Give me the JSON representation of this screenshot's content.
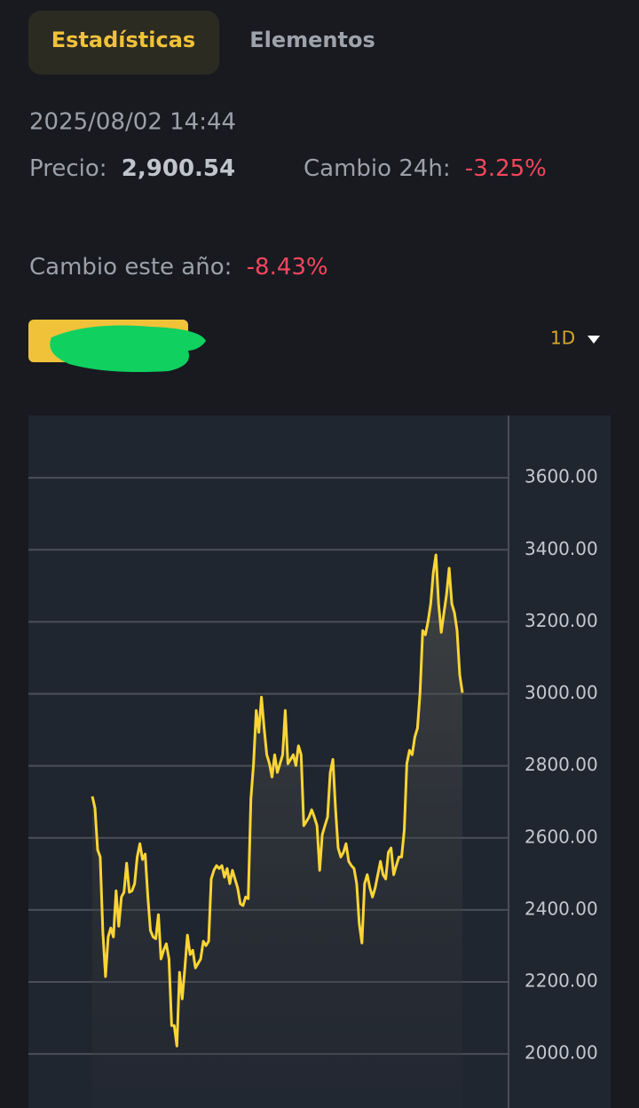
{
  "tabs": [
    "Estadísticas",
    "Elementos"
  ],
  "timestamp": "2025/08/02 14:44",
  "price_label": "Precio:",
  "price": "2,900.54",
  "change_24h_label": "Cambio 24h:",
  "change_24h": "-3.25%",
  "change_year_label": "Cambio este año:",
  "change_year": "-8.43%",
  "interval": "1D",
  "chart_data": {
    "type": "line",
    "color": "#fcd535",
    "grid": true,
    "ylim": [
      1850,
      3773
    ],
    "yticks": [
      {
        "value": 2000,
        "label": "2000.00"
      },
      {
        "value": 2200,
        "label": "2200.00"
      },
      {
        "value": 2400,
        "label": "2400.00"
      },
      {
        "value": 2600,
        "label": "2600.00"
      },
      {
        "value": 2800,
        "label": "2800.00"
      },
      {
        "value": 3000,
        "label": "3000.00"
      },
      {
        "value": 3200,
        "label": "3200.00"
      },
      {
        "value": 3400,
        "label": "3400.00"
      },
      {
        "value": 3600,
        "label": "3600.00"
      }
    ],
    "values": [
      2715,
      2683,
      2567,
      2547,
      2338,
      2215,
      2325,
      2350,
      2325,
      2453,
      2355,
      2436,
      2449,
      2530,
      2449,
      2453,
      2473,
      2547,
      2584,
      2540,
      2555,
      2436,
      2343,
      2325,
      2320,
      2387,
      2264,
      2288,
      2306,
      2264,
      2079,
      2079,
      2022,
      2227,
      2153,
      2239,
      2330,
      2276,
      2288,
      2239,
      2251,
      2264,
      2313,
      2301,
      2313,
      2486,
      2510,
      2523,
      2515,
      2523,
      2491,
      2515,
      2473,
      2510,
      2486,
      2461,
      2417,
      2412,
      2436,
      2431,
      2708,
      2806,
      2954,
      2893,
      2991,
      2905,
      2831,
      2806,
      2769,
      2831,
      2782,
      2806,
      2831,
      2954,
      2806,
      2818,
      2831,
      2801,
      2856,
      2831,
      2634,
      2646,
      2658,
      2678,
      2658,
      2634,
      2510,
      2609,
      2634,
      2658,
      2782,
      2818,
      2683,
      2572,
      2547,
      2560,
      2584,
      2535,
      2523,
      2515,
      2473,
      2362,
      2308,
      2473,
      2498,
      2461,
      2436,
      2461,
      2498,
      2535,
      2498,
      2486,
      2560,
      2572,
      2498,
      2523,
      2547,
      2547,
      2621,
      2806,
      2843,
      2831,
      2880,
      2905,
      3003,
      3176,
      3164,
      3201,
      3250,
      3336,
      3386,
      3250,
      3171,
      3225,
      3275,
      3349,
      3250,
      3225,
      3176,
      3053,
      3003
    ]
  }
}
